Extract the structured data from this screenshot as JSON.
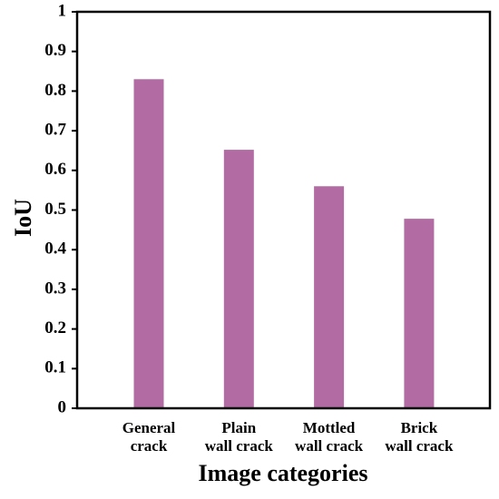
{
  "chart_data": {
    "type": "bar",
    "y_label": "IoU",
    "x_label": "Image categories",
    "categories": [
      "General\ncrack",
      "Plain\nwall crack",
      "Mottled\nwall crack",
      "Brick\nwall crack"
    ],
    "values": [
      0.83,
      0.652,
      0.56,
      0.478
    ],
    "color": "#b36ba3",
    "ylim": [
      0,
      1
    ],
    "yticks": [
      0,
      0.1,
      0.2,
      0.3,
      0.4,
      0.5,
      0.6,
      0.7,
      0.8,
      0.9,
      1
    ]
  }
}
